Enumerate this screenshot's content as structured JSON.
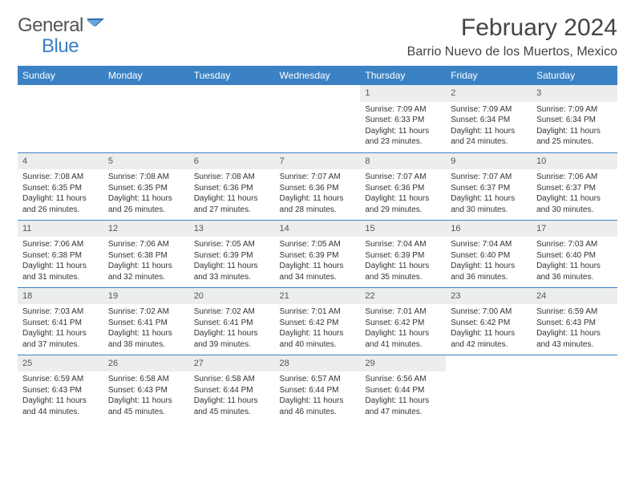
{
  "brand": {
    "name1": "General",
    "name2": "Blue"
  },
  "title": "February 2024",
  "location": "Barrio Nuevo de los Muertos, Mexico",
  "colors": {
    "header_bg": "#3b82c4",
    "header_text": "#ffffff",
    "daynum_bg": "#eceeee",
    "border": "#3b82c4",
    "text": "#333333"
  },
  "daysOfWeek": [
    "Sunday",
    "Monday",
    "Tuesday",
    "Wednesday",
    "Thursday",
    "Friday",
    "Saturday"
  ],
  "weeks": [
    [
      null,
      null,
      null,
      null,
      {
        "n": "1",
        "sr": "Sunrise: 7:09 AM",
        "ss": "Sunset: 6:33 PM",
        "dl": "Daylight: 11 hours and 23 minutes."
      },
      {
        "n": "2",
        "sr": "Sunrise: 7:09 AM",
        "ss": "Sunset: 6:34 PM",
        "dl": "Daylight: 11 hours and 24 minutes."
      },
      {
        "n": "3",
        "sr": "Sunrise: 7:09 AM",
        "ss": "Sunset: 6:34 PM",
        "dl": "Daylight: 11 hours and 25 minutes."
      }
    ],
    [
      {
        "n": "4",
        "sr": "Sunrise: 7:08 AM",
        "ss": "Sunset: 6:35 PM",
        "dl": "Daylight: 11 hours and 26 minutes."
      },
      {
        "n": "5",
        "sr": "Sunrise: 7:08 AM",
        "ss": "Sunset: 6:35 PM",
        "dl": "Daylight: 11 hours and 26 minutes."
      },
      {
        "n": "6",
        "sr": "Sunrise: 7:08 AM",
        "ss": "Sunset: 6:36 PM",
        "dl": "Daylight: 11 hours and 27 minutes."
      },
      {
        "n": "7",
        "sr": "Sunrise: 7:07 AM",
        "ss": "Sunset: 6:36 PM",
        "dl": "Daylight: 11 hours and 28 minutes."
      },
      {
        "n": "8",
        "sr": "Sunrise: 7:07 AM",
        "ss": "Sunset: 6:36 PM",
        "dl": "Daylight: 11 hours and 29 minutes."
      },
      {
        "n": "9",
        "sr": "Sunrise: 7:07 AM",
        "ss": "Sunset: 6:37 PM",
        "dl": "Daylight: 11 hours and 30 minutes."
      },
      {
        "n": "10",
        "sr": "Sunrise: 7:06 AM",
        "ss": "Sunset: 6:37 PM",
        "dl": "Daylight: 11 hours and 30 minutes."
      }
    ],
    [
      {
        "n": "11",
        "sr": "Sunrise: 7:06 AM",
        "ss": "Sunset: 6:38 PM",
        "dl": "Daylight: 11 hours and 31 minutes."
      },
      {
        "n": "12",
        "sr": "Sunrise: 7:06 AM",
        "ss": "Sunset: 6:38 PM",
        "dl": "Daylight: 11 hours and 32 minutes."
      },
      {
        "n": "13",
        "sr": "Sunrise: 7:05 AM",
        "ss": "Sunset: 6:39 PM",
        "dl": "Daylight: 11 hours and 33 minutes."
      },
      {
        "n": "14",
        "sr": "Sunrise: 7:05 AM",
        "ss": "Sunset: 6:39 PM",
        "dl": "Daylight: 11 hours and 34 minutes."
      },
      {
        "n": "15",
        "sr": "Sunrise: 7:04 AM",
        "ss": "Sunset: 6:39 PM",
        "dl": "Daylight: 11 hours and 35 minutes."
      },
      {
        "n": "16",
        "sr": "Sunrise: 7:04 AM",
        "ss": "Sunset: 6:40 PM",
        "dl": "Daylight: 11 hours and 36 minutes."
      },
      {
        "n": "17",
        "sr": "Sunrise: 7:03 AM",
        "ss": "Sunset: 6:40 PM",
        "dl": "Daylight: 11 hours and 36 minutes."
      }
    ],
    [
      {
        "n": "18",
        "sr": "Sunrise: 7:03 AM",
        "ss": "Sunset: 6:41 PM",
        "dl": "Daylight: 11 hours and 37 minutes."
      },
      {
        "n": "19",
        "sr": "Sunrise: 7:02 AM",
        "ss": "Sunset: 6:41 PM",
        "dl": "Daylight: 11 hours and 38 minutes."
      },
      {
        "n": "20",
        "sr": "Sunrise: 7:02 AM",
        "ss": "Sunset: 6:41 PM",
        "dl": "Daylight: 11 hours and 39 minutes."
      },
      {
        "n": "21",
        "sr": "Sunrise: 7:01 AM",
        "ss": "Sunset: 6:42 PM",
        "dl": "Daylight: 11 hours and 40 minutes."
      },
      {
        "n": "22",
        "sr": "Sunrise: 7:01 AM",
        "ss": "Sunset: 6:42 PM",
        "dl": "Daylight: 11 hours and 41 minutes."
      },
      {
        "n": "23",
        "sr": "Sunrise: 7:00 AM",
        "ss": "Sunset: 6:42 PM",
        "dl": "Daylight: 11 hours and 42 minutes."
      },
      {
        "n": "24",
        "sr": "Sunrise: 6:59 AM",
        "ss": "Sunset: 6:43 PM",
        "dl": "Daylight: 11 hours and 43 minutes."
      }
    ],
    [
      {
        "n": "25",
        "sr": "Sunrise: 6:59 AM",
        "ss": "Sunset: 6:43 PM",
        "dl": "Daylight: 11 hours and 44 minutes."
      },
      {
        "n": "26",
        "sr": "Sunrise: 6:58 AM",
        "ss": "Sunset: 6:43 PM",
        "dl": "Daylight: 11 hours and 45 minutes."
      },
      {
        "n": "27",
        "sr": "Sunrise: 6:58 AM",
        "ss": "Sunset: 6:44 PM",
        "dl": "Daylight: 11 hours and 45 minutes."
      },
      {
        "n": "28",
        "sr": "Sunrise: 6:57 AM",
        "ss": "Sunset: 6:44 PM",
        "dl": "Daylight: 11 hours and 46 minutes."
      },
      {
        "n": "29",
        "sr": "Sunrise: 6:56 AM",
        "ss": "Sunset: 6:44 PM",
        "dl": "Daylight: 11 hours and 47 minutes."
      },
      null,
      null
    ]
  ]
}
